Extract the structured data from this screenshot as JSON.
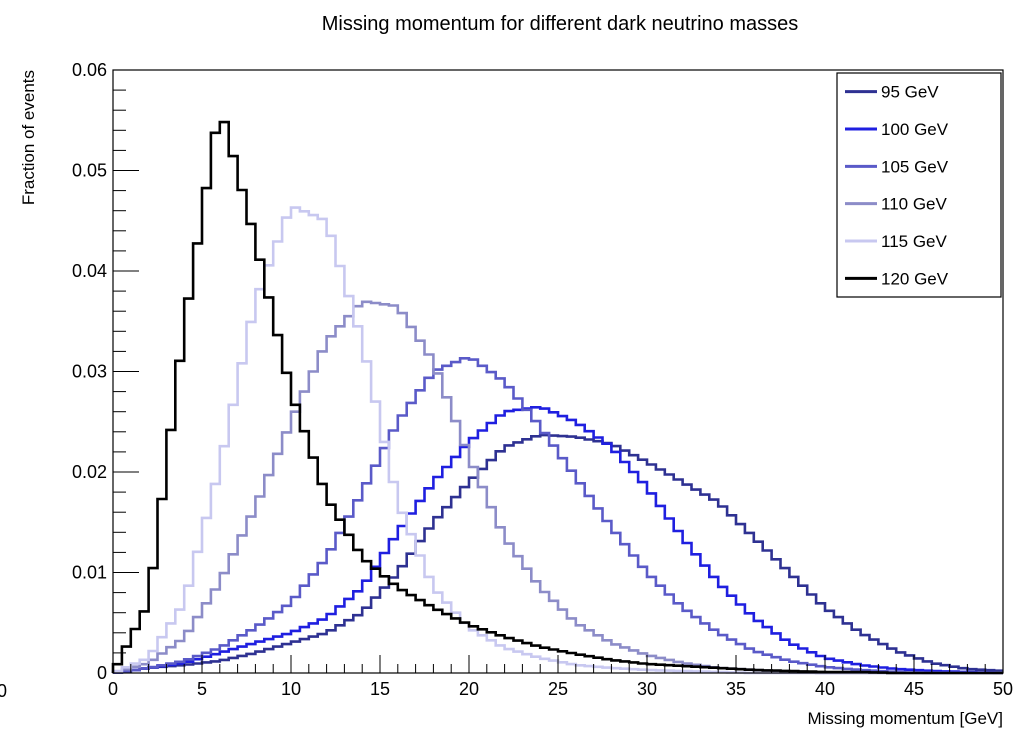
{
  "chart_data": {
    "type": "line",
    "title": "Missing momentum for different dark neutrino masses",
    "xlabel": "Missing momentum [GeV]",
    "ylabel": "Fraction of events",
    "xlim": [
      0,
      50
    ],
    "ylim": [
      0,
      0.06
    ],
    "x_ticks": [
      0,
      5,
      10,
      15,
      20,
      25,
      30,
      35,
      40,
      45,
      50
    ],
    "x_tick_labels": [
      "0",
      "5",
      "10",
      "15",
      "20",
      "25",
      "30",
      "35",
      "40",
      "45",
      "50"
    ],
    "y_ticks": [
      0,
      0.01,
      0.02,
      0.03,
      0.04,
      0.05,
      0.06
    ],
    "y_tick_labels": [
      "0",
      "0.01",
      "0.02",
      "0.03",
      "0.04",
      "0.05",
      "0.06"
    ],
    "stray_label": "0",
    "bin_width": 0.5,
    "style": "step-histogram",
    "grid": false,
    "legend_position": "top-right",
    "x": [
      2,
      4,
      6,
      8,
      10,
      12,
      14,
      16,
      18,
      20,
      22,
      24,
      26,
      28,
      30,
      32,
      34,
      36,
      38,
      40,
      42,
      44,
      46,
      48,
      50
    ],
    "series": [
      {
        "name": "95 GeV",
        "color": "#2e3192",
        "values": [
          0.0005,
          0.0008,
          0.0012,
          0.002,
          0.003,
          0.004,
          0.006,
          0.01,
          0.015,
          0.019,
          0.0225,
          0.0237,
          0.0235,
          0.0228,
          0.021,
          0.019,
          0.017,
          0.0135,
          0.01,
          0.0065,
          0.004,
          0.0022,
          0.001,
          0.0004,
          0.0002
        ]
      },
      {
        "name": "100 GeV",
        "color": "#1f1fe0",
        "values": [
          0.0005,
          0.001,
          0.002,
          0.003,
          0.004,
          0.0055,
          0.0085,
          0.014,
          0.019,
          0.023,
          0.026,
          0.0265,
          0.025,
          0.0225,
          0.0185,
          0.0135,
          0.009,
          0.0055,
          0.003,
          0.0015,
          0.0008,
          0.0004,
          0.0002,
          0.0001,
          0.0
        ]
      },
      {
        "name": "105 GeV",
        "color": "#5a5ac8",
        "values": [
          0.0005,
          0.0012,
          0.0025,
          0.0045,
          0.007,
          0.0115,
          0.018,
          0.025,
          0.03,
          0.0315,
          0.029,
          0.0245,
          0.0195,
          0.0145,
          0.01,
          0.0065,
          0.004,
          0.0022,
          0.0012,
          0.0006,
          0.0003,
          0.0001,
          0.0,
          0.0,
          0.0
        ]
      },
      {
        "name": "110 GeV",
        "color": "#8c8cc8",
        "values": [
          0.001,
          0.0035,
          0.009,
          0.0165,
          0.025,
          0.033,
          0.037,
          0.0365,
          0.031,
          0.0215,
          0.0135,
          0.0085,
          0.005,
          0.003,
          0.0018,
          0.001,
          0.0005,
          0.0003,
          0.0001,
          0.0,
          0.0,
          0.0,
          0.0,
          0.0,
          0.0
        ]
      },
      {
        "name": "115 GeV",
        "color": "#c8c8f0",
        "values": [
          0.0015,
          0.007,
          0.0205,
          0.037,
          0.0465,
          0.045,
          0.033,
          0.017,
          0.0085,
          0.0045,
          0.0025,
          0.0015,
          0.0008,
          0.0005,
          0.0003,
          0.0002,
          0.0001,
          0.0,
          0.0,
          0.0,
          0.0,
          0.0,
          0.0,
          0.0,
          0.0
        ]
      },
      {
        "name": "120 GeV",
        "color": "#000000",
        "values": [
          0.007,
          0.0345,
          0.0565,
          0.043,
          0.028,
          0.0175,
          0.0115,
          0.0085,
          0.0065,
          0.0048,
          0.0036,
          0.0026,
          0.0019,
          0.0013,
          0.0009,
          0.0007,
          0.0005,
          0.0003,
          0.0002,
          0.0001,
          0.0001,
          0.0,
          0.0,
          0.0,
          0.0
        ]
      }
    ]
  }
}
